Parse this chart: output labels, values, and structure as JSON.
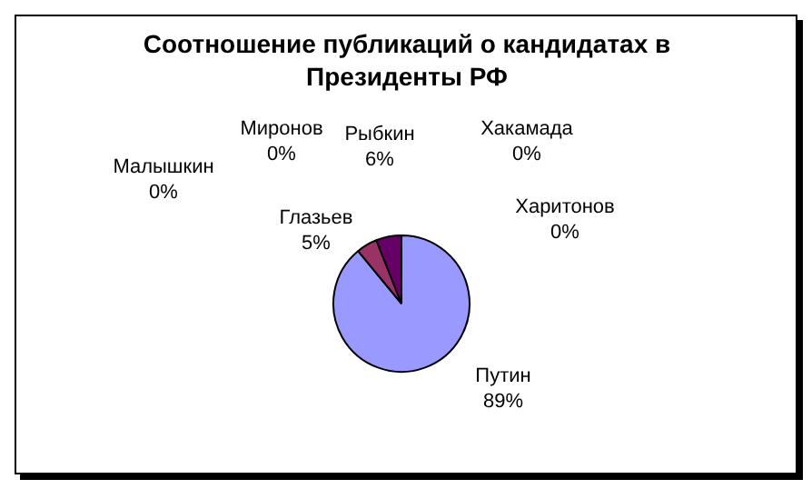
{
  "chart_data": {
    "type": "pie",
    "title": "Соотношение публикаций о кандидатах в Президенты РФ",
    "categories": [
      "Путин",
      "Глазьев",
      "Малышкин",
      "Миронов",
      "Рыбкин",
      "Хакамада",
      "Харитонов"
    ],
    "values": [
      89,
      5,
      0,
      0,
      6,
      0,
      0
    ],
    "value_labels": [
      "89%",
      "5%",
      "0%",
      "0%",
      "6%",
      "0%",
      "0%"
    ],
    "colors": [
      "#9999ff",
      "#993366",
      "#ffffcc",
      "#ccffff",
      "#660066",
      "#ff8080",
      "#0066cc"
    ]
  }
}
